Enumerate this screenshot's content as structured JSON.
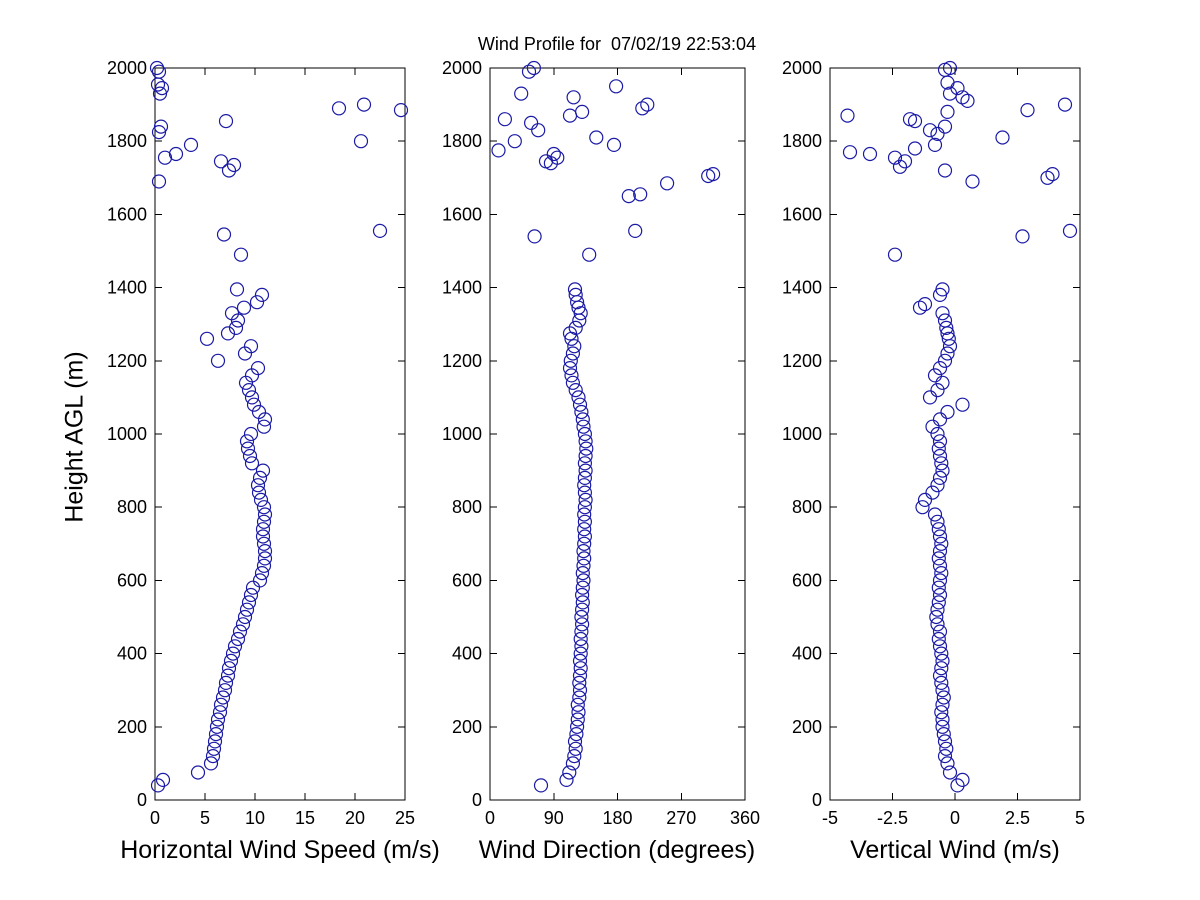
{
  "figure": {
    "title": "Wind Profile for  07/02/19 22:53:04",
    "ylabel": "Height AGL (m)"
  },
  "colors": {
    "marker": "#1a1aa6",
    "axis": "#000000",
    "background": "#ffffff"
  },
  "height_axis": {
    "label": "Height AGL (m)",
    "lim": [
      0,
      2000
    ],
    "ticks": [
      0,
      200,
      400,
      600,
      800,
      1000,
      1200,
      1400,
      1600,
      1800,
      2000
    ],
    "labels": [
      "0",
      "200",
      "400",
      "600",
      "800",
      "1000",
      "1200",
      "1400",
      "1600",
      "1800",
      "2000"
    ]
  },
  "chart_data": [
    {
      "type": "scatter",
      "id": "horizontal-wind-speed",
      "xlabel": "Horizontal Wind Speed (m/s)",
      "ylabel": "Height AGL (m)",
      "marker": "circle-open",
      "grid": false,
      "xlim": [
        0,
        25
      ],
      "xticks": [
        0,
        5,
        10,
        15,
        20,
        25
      ],
      "xtick_labels": [
        "0",
        "5",
        "10",
        "15",
        "20",
        "25"
      ],
      "points": [
        [
          0.3,
          40
        ],
        [
          0.8,
          55
        ],
        [
          4.3,
          75
        ],
        [
          5.6,
          100
        ],
        [
          5.8,
          120
        ],
        [
          5.9,
          140
        ],
        [
          6.0,
          160
        ],
        [
          6.1,
          180
        ],
        [
          6.2,
          200
        ],
        [
          6.3,
          220
        ],
        [
          6.5,
          240
        ],
        [
          6.6,
          260
        ],
        [
          6.8,
          280
        ],
        [
          7.0,
          300
        ],
        [
          7.1,
          320
        ],
        [
          7.3,
          340
        ],
        [
          7.4,
          360
        ],
        [
          7.6,
          380
        ],
        [
          7.8,
          400
        ],
        [
          8.0,
          420
        ],
        [
          8.3,
          440
        ],
        [
          8.5,
          460
        ],
        [
          8.8,
          480
        ],
        [
          9.0,
          500
        ],
        [
          9.2,
          520
        ],
        [
          9.4,
          540
        ],
        [
          9.6,
          560
        ],
        [
          9.8,
          580
        ],
        [
          10.5,
          600
        ],
        [
          10.7,
          620
        ],
        [
          10.9,
          640
        ],
        [
          11.0,
          660
        ],
        [
          11.0,
          680
        ],
        [
          10.9,
          700
        ],
        [
          10.8,
          720
        ],
        [
          10.8,
          740
        ],
        [
          10.9,
          760
        ],
        [
          11.0,
          780
        ],
        [
          10.9,
          800
        ],
        [
          10.6,
          820
        ],
        [
          10.4,
          840
        ],
        [
          10.3,
          860
        ],
        [
          10.5,
          880
        ],
        [
          10.8,
          900
        ],
        [
          9.7,
          920
        ],
        [
          9.5,
          940
        ],
        [
          9.3,
          960
        ],
        [
          9.2,
          980
        ],
        [
          9.6,
          1000
        ],
        [
          10.9,
          1020
        ],
        [
          11.0,
          1040
        ],
        [
          10.4,
          1060
        ],
        [
          9.9,
          1080
        ],
        [
          9.7,
          1100
        ],
        [
          9.4,
          1120
        ],
        [
          9.1,
          1140
        ],
        [
          9.7,
          1160
        ],
        [
          10.3,
          1180
        ],
        [
          6.3,
          1200
        ],
        [
          9.0,
          1220
        ],
        [
          9.6,
          1240
        ],
        [
          5.2,
          1260
        ],
        [
          7.3,
          1275
        ],
        [
          8.1,
          1290
        ],
        [
          8.3,
          1310
        ],
        [
          7.7,
          1330
        ],
        [
          8.9,
          1345
        ],
        [
          10.2,
          1360
        ],
        [
          10.7,
          1380
        ],
        [
          8.2,
          1395
        ],
        [
          8.6,
          1490
        ],
        [
          6.9,
          1545
        ],
        [
          22.5,
          1555
        ],
        [
          0.4,
          1690
        ],
        [
          7.4,
          1720
        ],
        [
          7.9,
          1735
        ],
        [
          6.6,
          1745
        ],
        [
          1.0,
          1755
        ],
        [
          2.1,
          1765
        ],
        [
          3.6,
          1790
        ],
        [
          20.6,
          1800
        ],
        [
          0.4,
          1825
        ],
        [
          0.6,
          1840
        ],
        [
          7.1,
          1855
        ],
        [
          24.6,
          1885
        ],
        [
          18.4,
          1890
        ],
        [
          20.9,
          1900
        ],
        [
          0.5,
          1930
        ],
        [
          0.7,
          1945
        ],
        [
          0.3,
          1955
        ],
        [
          0.4,
          1990
        ],
        [
          0.2,
          2000
        ]
      ]
    },
    {
      "type": "scatter",
      "id": "wind-direction",
      "xlabel": "Wind Direction (degrees)",
      "ylabel": "Height AGL (m)",
      "marker": "circle-open",
      "grid": false,
      "xlim": [
        0,
        360
      ],
      "xticks": [
        0,
        90,
        180,
        270,
        360
      ],
      "xtick_labels": [
        "0",
        "90",
        "180",
        "270",
        "360"
      ],
      "points": [
        [
          72,
          40
        ],
        [
          108,
          55
        ],
        [
          112,
          75
        ],
        [
          117,
          100
        ],
        [
          119,
          120
        ],
        [
          121,
          140
        ],
        [
          120,
          160
        ],
        [
          122,
          180
        ],
        [
          123,
          200
        ],
        [
          124,
          220
        ],
        [
          125,
          240
        ],
        [
          124,
          260
        ],
        [
          126,
          280
        ],
        [
          127,
          300
        ],
        [
          126,
          320
        ],
        [
          127,
          340
        ],
        [
          128,
          360
        ],
        [
          127,
          380
        ],
        [
          128,
          400
        ],
        [
          129,
          420
        ],
        [
          128,
          440
        ],
        [
          129,
          460
        ],
        [
          130,
          480
        ],
        [
          129,
          500
        ],
        [
          130,
          520
        ],
        [
          131,
          540
        ],
        [
          130,
          560
        ],
        [
          131,
          580
        ],
        [
          132,
          600
        ],
        [
          131,
          620
        ],
        [
          132,
          640
        ],
        [
          133,
          660
        ],
        [
          132,
          680
        ],
        [
          133,
          700
        ],
        [
          134,
          720
        ],
        [
          133,
          740
        ],
        [
          134,
          760
        ],
        [
          133,
          780
        ],
        [
          134,
          800
        ],
        [
          135,
          820
        ],
        [
          134,
          840
        ],
        [
          133,
          860
        ],
        [
          134,
          880
        ],
        [
          135,
          900
        ],
        [
          134,
          920
        ],
        [
          135,
          940
        ],
        [
          136,
          960
        ],
        [
          135,
          980
        ],
        [
          134,
          1000
        ],
        [
          132,
          1020
        ],
        [
          131,
          1040
        ],
        [
          129,
          1060
        ],
        [
          127,
          1080
        ],
        [
          125,
          1100
        ],
        [
          121,
          1120
        ],
        [
          117,
          1140
        ],
        [
          115,
          1160
        ],
        [
          113,
          1180
        ],
        [
          114,
          1200
        ],
        [
          117,
          1220
        ],
        [
          119,
          1240
        ],
        [
          115,
          1260
        ],
        [
          113,
          1275
        ],
        [
          121,
          1290
        ],
        [
          126,
          1310
        ],
        [
          128,
          1330
        ],
        [
          125,
          1345
        ],
        [
          123,
          1360
        ],
        [
          121,
          1380
        ],
        [
          120,
          1395
        ],
        [
          140,
          1490
        ],
        [
          63,
          1540
        ],
        [
          205,
          1555
        ],
        [
          196,
          1650
        ],
        [
          212,
          1655
        ],
        [
          250,
          1685
        ],
        [
          308,
          1705
        ],
        [
          315,
          1710
        ],
        [
          86,
          1740
        ],
        [
          79,
          1745
        ],
        [
          95,
          1755
        ],
        [
          90,
          1765
        ],
        [
          12,
          1775
        ],
        [
          175,
          1790
        ],
        [
          35,
          1800
        ],
        [
          150,
          1810
        ],
        [
          68,
          1830
        ],
        [
          58,
          1850
        ],
        [
          21,
          1860
        ],
        [
          113,
          1870
        ],
        [
          130,
          1880
        ],
        [
          215,
          1890
        ],
        [
          222,
          1900
        ],
        [
          118,
          1920
        ],
        [
          44,
          1930
        ],
        [
          178,
          1950
        ],
        [
          55,
          1990
        ],
        [
          62,
          2000
        ]
      ]
    },
    {
      "type": "scatter",
      "id": "vertical-wind",
      "xlabel": "Vertical Wind (m/s)",
      "ylabel": "Height AGL (m)",
      "marker": "circle-open",
      "grid": false,
      "xlim": [
        -5,
        5
      ],
      "xticks": [
        -5,
        -2.5,
        0,
        2.5,
        5
      ],
      "xtick_labels": [
        "-5",
        "-2.5",
        "0",
        "2.5",
        "5"
      ],
      "points": [
        [
          0.1,
          40
        ],
        [
          0.3,
          55
        ],
        [
          -0.2,
          75
        ],
        [
          -0.3,
          100
        ],
        [
          -0.4,
          120
        ],
        [
          -0.35,
          140
        ],
        [
          -0.4,
          160
        ],
        [
          -0.45,
          180
        ],
        [
          -0.5,
          200
        ],
        [
          -0.5,
          220
        ],
        [
          -0.55,
          240
        ],
        [
          -0.5,
          260
        ],
        [
          -0.45,
          280
        ],
        [
          -0.5,
          300
        ],
        [
          -0.55,
          320
        ],
        [
          -0.6,
          340
        ],
        [
          -0.55,
          360
        ],
        [
          -0.5,
          380
        ],
        [
          -0.55,
          400
        ],
        [
          -0.6,
          420
        ],
        [
          -0.65,
          440
        ],
        [
          -0.6,
          460
        ],
        [
          -0.7,
          480
        ],
        [
          -0.75,
          500
        ],
        [
          -0.7,
          520
        ],
        [
          -0.65,
          540
        ],
        [
          -0.6,
          560
        ],
        [
          -0.65,
          580
        ],
        [
          -0.6,
          600
        ],
        [
          -0.55,
          620
        ],
        [
          -0.6,
          640
        ],
        [
          -0.65,
          660
        ],
        [
          -0.6,
          680
        ],
        [
          -0.55,
          700
        ],
        [
          -0.6,
          720
        ],
        [
          -0.65,
          740
        ],
        [
          -0.7,
          760
        ],
        [
          -0.8,
          780
        ],
        [
          -1.3,
          800
        ],
        [
          -1.2,
          820
        ],
        [
          -0.9,
          840
        ],
        [
          -0.7,
          860
        ],
        [
          -0.6,
          880
        ],
        [
          -0.5,
          900
        ],
        [
          -0.55,
          920
        ],
        [
          -0.6,
          940
        ],
        [
          -0.65,
          960
        ],
        [
          -0.6,
          980
        ],
        [
          -0.7,
          1000
        ],
        [
          -0.9,
          1020
        ],
        [
          -0.6,
          1040
        ],
        [
          -0.3,
          1060
        ],
        [
          0.3,
          1080
        ],
        [
          -1.0,
          1100
        ],
        [
          -0.7,
          1120
        ],
        [
          -0.5,
          1140
        ],
        [
          -0.8,
          1160
        ],
        [
          -0.6,
          1180
        ],
        [
          -0.4,
          1200
        ],
        [
          -0.3,
          1220
        ],
        [
          -0.2,
          1240
        ],
        [
          -0.25,
          1260
        ],
        [
          -0.3,
          1275
        ],
        [
          -0.35,
          1290
        ],
        [
          -0.4,
          1310
        ],
        [
          -0.5,
          1330
        ],
        [
          -1.4,
          1345
        ],
        [
          -1.2,
          1355
        ],
        [
          -0.6,
          1380
        ],
        [
          -0.5,
          1395
        ],
        [
          -2.4,
          1490
        ],
        [
          2.7,
          1540
        ],
        [
          4.6,
          1555
        ],
        [
          0.7,
          1690
        ],
        [
          3.7,
          1700
        ],
        [
          3.9,
          1710
        ],
        [
          -0.4,
          1720
        ],
        [
          -2.2,
          1730
        ],
        [
          -2.0,
          1745
        ],
        [
          -2.4,
          1755
        ],
        [
          -3.4,
          1765
        ],
        [
          -4.2,
          1770
        ],
        [
          -1.6,
          1780
        ],
        [
          -0.8,
          1790
        ],
        [
          1.9,
          1810
        ],
        [
          -0.7,
          1820
        ],
        [
          -1.0,
          1830
        ],
        [
          -0.4,
          1840
        ],
        [
          -1.6,
          1855
        ],
        [
          -1.8,
          1860
        ],
        [
          -4.3,
          1870
        ],
        [
          -0.3,
          1880
        ],
        [
          2.9,
          1885
        ],
        [
          4.4,
          1900
        ],
        [
          0.5,
          1910
        ],
        [
          0.3,
          1920
        ],
        [
          -0.2,
          1930
        ],
        [
          0.1,
          1945
        ],
        [
          -0.3,
          1960
        ],
        [
          -0.4,
          1995
        ],
        [
          -0.2,
          2000
        ]
      ]
    }
  ]
}
